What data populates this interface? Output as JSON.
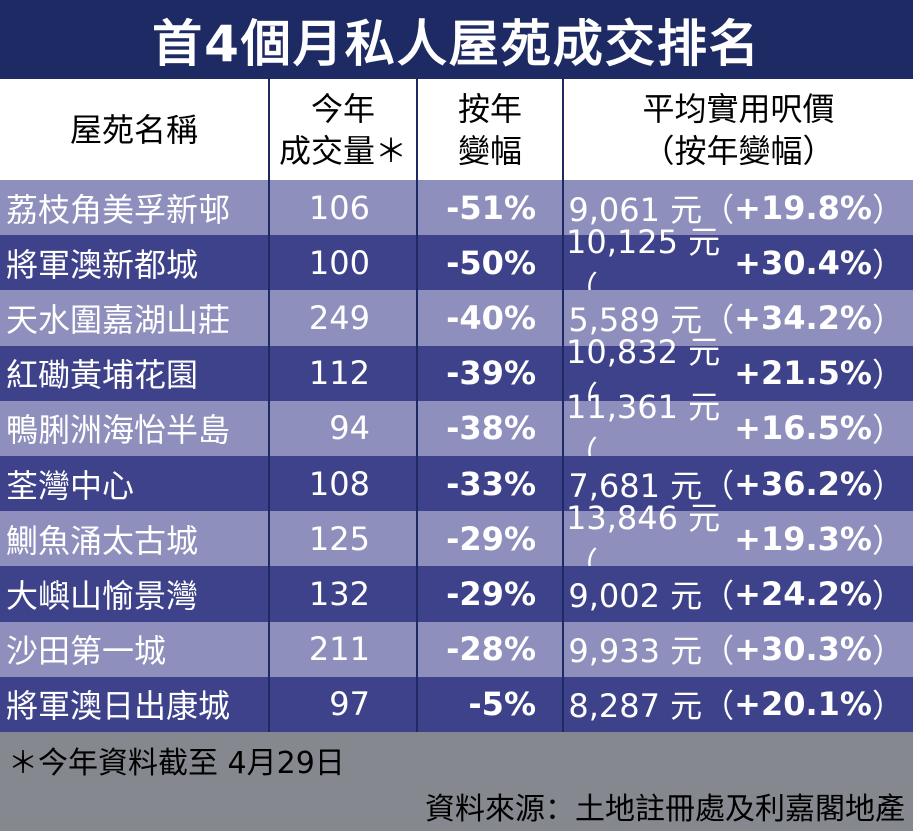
{
  "title": "首4個月私人屋苑成交排名",
  "headers": {
    "name": "屋苑名稱",
    "volume_line1": "今年",
    "volume_line2": "成交量＊",
    "change_line1": "按年",
    "change_line2": "變幅",
    "price_line1": "平均實用呎價",
    "price_line2": "（按年變幅）"
  },
  "rows": [
    {
      "name": "荔枝角美孚新邨",
      "volume": "106",
      "change": "-51%",
      "price": "9,061 元（",
      "price_change": "+19.8%",
      "close": "）"
    },
    {
      "name": "將軍澳新都城",
      "volume": "100",
      "change": "-50%",
      "price": "10,125 元（",
      "price_change": "+30.4%",
      "close": "）"
    },
    {
      "name": "天水圍嘉湖山莊",
      "volume": "249",
      "change": "-40%",
      "price": "5,589 元（",
      "price_change": "+34.2%",
      "close": "）"
    },
    {
      "name": "紅磡黃埔花園",
      "volume": "112",
      "change": "-39%",
      "price": "10,832 元（",
      "price_change": "+21.5%",
      "close": "）"
    },
    {
      "name": "鴨脷洲海怡半島",
      "volume": "94",
      "change": "-38%",
      "price": "11,361 元（",
      "price_change": "+16.5%",
      "close": "）"
    },
    {
      "name": "荃灣中心",
      "volume": "108",
      "change": "-33%",
      "price": "7,681 元（",
      "price_change": "+36.2%",
      "close": "）"
    },
    {
      "name": "鰂魚涌太古城",
      "volume": "125",
      "change": "-29%",
      "price": "13,846 元（",
      "price_change": "+19.3%",
      "close": "）"
    },
    {
      "name": "大嶼山愉景灣",
      "volume": "132",
      "change": "-29%",
      "price": "9,002 元（",
      "price_change": "+24.2%",
      "close": "）"
    },
    {
      "name": "沙田第一城",
      "volume": "211",
      "change": "-28%",
      "price": "9,933 元（",
      "price_change": "+30.3%",
      "close": "）"
    },
    {
      "name": "將軍澳日出康城",
      "volume": "97",
      "change": "-5%",
      "price": "8,287 元（",
      "price_change": "+20.1%",
      "close": "）"
    }
  ],
  "footnote": "＊今年資料截至 4月29日",
  "source": "資料來源：土地註冊處及利嘉閣地產",
  "colors": {
    "title_bg": "#1e2a63",
    "row_light": "#8e8fbd",
    "row_dark": "#3e428a",
    "footer_bg": "#85888e"
  }
}
